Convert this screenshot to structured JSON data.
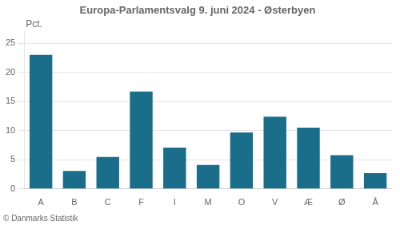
{
  "chart_data": {
    "type": "bar",
    "title": "Europa-Parlamentsvalg 9. juni 2024 - Østerbyen",
    "ylabel": "Pct.",
    "annotations": [
      "© Danmarks Statistik"
    ],
    "categories": [
      "A",
      "B",
      "C",
      "F",
      "I",
      "M",
      "O",
      "V",
      "Æ",
      "Ø",
      "Å"
    ],
    "values": [
      23.0,
      3.1,
      5.5,
      16.7,
      7.1,
      4.1,
      9.7,
      12.4,
      10.5,
      5.8,
      2.7
    ],
    "color": "#1a6e8a",
    "ylim": [
      0,
      27
    ],
    "yticks": [
      0,
      5,
      10,
      15,
      20,
      25
    ],
    "grid": true
  }
}
